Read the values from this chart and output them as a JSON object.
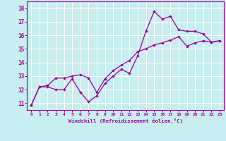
{
  "xlabel": "Windchill (Refroidissement éolien,°C)",
  "bg_color": "#c8eef0",
  "line_color": "#990099",
  "grid_color": "#ffffff",
  "xlim": [
    -0.5,
    23.5
  ],
  "ylim": [
    10.5,
    18.5
  ],
  "xticks": [
    0,
    1,
    2,
    3,
    4,
    5,
    6,
    7,
    8,
    9,
    10,
    11,
    12,
    13,
    14,
    15,
    16,
    17,
    18,
    19,
    20,
    21,
    22,
    23
  ],
  "yticks": [
    11,
    12,
    13,
    14,
    15,
    16,
    17,
    18
  ],
  "line1_x": [
    0,
    1,
    2,
    3,
    4,
    5,
    6,
    7,
    8,
    9,
    10,
    11,
    12,
    13,
    14,
    15,
    16,
    17,
    18,
    19,
    20,
    21,
    22,
    23
  ],
  "line1_y": [
    10.85,
    12.2,
    12.2,
    12.0,
    12.0,
    12.8,
    11.8,
    11.1,
    11.55,
    12.45,
    13.0,
    13.5,
    13.2,
    14.5,
    16.3,
    17.75,
    17.2,
    17.4,
    16.4,
    16.3,
    16.3,
    16.1,
    15.5,
    15.6
  ],
  "line2_x": [
    0,
    1,
    2,
    3,
    4,
    5,
    6,
    7,
    8,
    9,
    10,
    11,
    12,
    13,
    14,
    15,
    16,
    17,
    18,
    19,
    20,
    21,
    22,
    23
  ],
  "line2_y": [
    10.85,
    12.2,
    12.3,
    12.85,
    12.85,
    13.0,
    13.1,
    12.85,
    11.8,
    12.8,
    13.4,
    13.8,
    14.15,
    14.8,
    15.0,
    15.3,
    15.45,
    15.65,
    15.9,
    15.2,
    15.45,
    15.6,
    15.5,
    15.6
  ]
}
